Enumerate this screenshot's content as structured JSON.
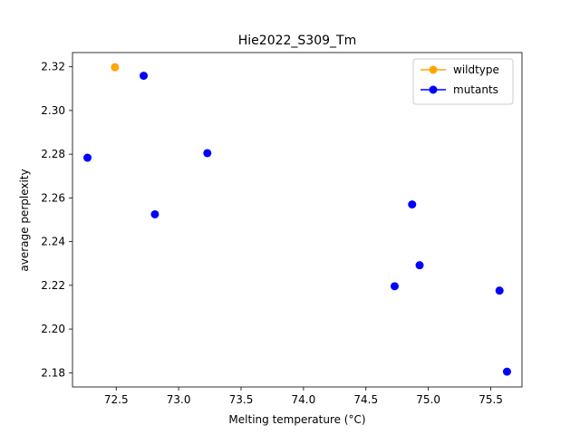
{
  "chart_data": {
    "type": "scatter",
    "title": "Hie2022_S309_Tm",
    "xlabel": "Melting temperature (°C)",
    "ylabel": "average perplexity",
    "xlim": [
      72.15,
      75.75
    ],
    "ylim": [
      2.1735,
      2.3265
    ],
    "xticks": [
      "72.5",
      "73.0",
      "73.5",
      "74.0",
      "74.5",
      "75.0",
      "75.5"
    ],
    "yticks": [
      "2.18",
      "2.20",
      "2.22",
      "2.24",
      "2.26",
      "2.28",
      "2.30",
      "2.32"
    ],
    "legend_position": "top-right",
    "series": [
      {
        "name": "wildtype",
        "color": "#ffa500",
        "points": [
          {
            "x": 72.49,
            "y": 2.3198
          }
        ]
      },
      {
        "name": "mutants",
        "color": "#0000ff",
        "points": [
          {
            "x": 72.72,
            "y": 2.3159
          },
          {
            "x": 72.27,
            "y": 2.2784
          },
          {
            "x": 72.81,
            "y": 2.2525
          },
          {
            "x": 73.23,
            "y": 2.2805
          },
          {
            "x": 74.73,
            "y": 2.2196
          },
          {
            "x": 74.87,
            "y": 2.257
          },
          {
            "x": 74.93,
            "y": 2.2292
          },
          {
            "x": 75.57,
            "y": 2.2176
          },
          {
            "x": 75.63,
            "y": 2.1805
          }
        ]
      }
    ]
  }
}
